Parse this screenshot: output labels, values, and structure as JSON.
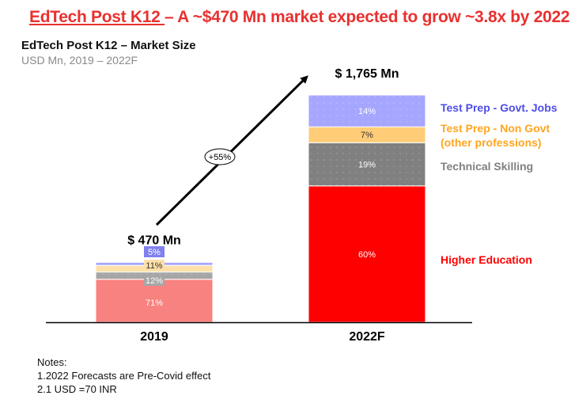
{
  "header": {
    "title_underlined": "EdTech Post K12 ",
    "title_rest": "– A ~$470 Mn market expected to grow ~3.8x by 2022",
    "subtitle": "EdTech Post K12 – Market Size",
    "units": "USD Mn, 2019 – 2022F"
  },
  "colors": {
    "accent_red": "#e8312f"
  },
  "chart_data": {
    "type": "bar",
    "stacked": true,
    "title": "EdTech Post K12 – Market Size",
    "ylabel": "USD Mn",
    "categories": [
      "2019",
      "2022F"
    ],
    "totals": [
      470,
      1765
    ],
    "total_labels": [
      "$ 470 Mn",
      "$ 1,765 Mn"
    ],
    "series": [
      {
        "name": "Higher Education",
        "values_pct": [
          71,
          60
        ],
        "labels": [
          "71%",
          "60%"
        ],
        "colors": [
          "#f8827f",
          "#ff0000"
        ],
        "legend_color": "#ff0000"
      },
      {
        "name": "Technical  Skilling",
        "values_pct": [
          12,
          19
        ],
        "labels": [
          "12%",
          "19%"
        ],
        "colors": [
          "#a6a6a6",
          "#808080"
        ],
        "legend_color": "#808080"
      },
      {
        "name": "Test Prep - Non Govt (other professions)",
        "legend_lines": [
          "Test Prep - Non Govt",
          "(other professions)"
        ],
        "values_pct": [
          11,
          7
        ],
        "labels": [
          "11%",
          "7%"
        ],
        "colors": [
          "#ffe0a8",
          "#ffcc77"
        ],
        "legend_color": "#ffa51f"
      },
      {
        "name": "Test Prep - Govt. Jobs",
        "values_pct": [
          5,
          14
        ],
        "labels": [
          "5%",
          "14%"
        ],
        "colors": [
          "#a6a6ff",
          "#a6a6ff"
        ],
        "legend_color": "#4d4de8"
      }
    ],
    "annotation": {
      "text": "+55%",
      "meaning": "growth arrow from 2019 to 2022F"
    },
    "ylim": [
      0,
      1765
    ],
    "grid": false,
    "legend": "right"
  },
  "notes": {
    "heading": "Notes:",
    "items": [
      "1.2022 Forecasts are Pre-Covid effect",
      "2.1 USD =70 INR"
    ]
  }
}
